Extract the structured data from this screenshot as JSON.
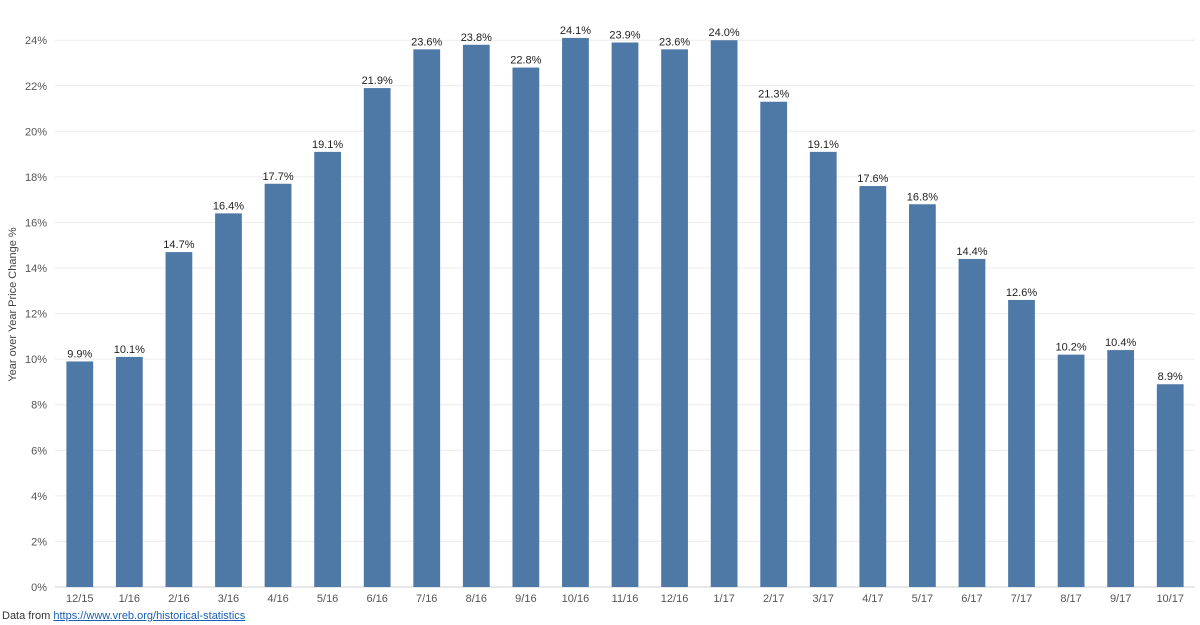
{
  "chart_data": {
    "type": "bar",
    "title": "",
    "xlabel": "",
    "ylabel": "Year over Year Price Change %",
    "ylim": [
      0,
      24.8
    ],
    "yticks": [
      "0%",
      "2%",
      "4%",
      "6%",
      "8%",
      "10%",
      "12%",
      "14%",
      "16%",
      "18%",
      "20%",
      "22%",
      "24%"
    ],
    "categories": [
      "12/15",
      "1/16",
      "2/16",
      "3/16",
      "4/16",
      "5/16",
      "6/16",
      "7/16",
      "8/16",
      "9/16",
      "10/16",
      "11/16",
      "12/16",
      "1/17",
      "2/17",
      "3/17",
      "4/17",
      "5/17",
      "6/17",
      "7/17",
      "8/17",
      "9/17",
      "10/17"
    ],
    "values": [
      9.9,
      10.1,
      14.7,
      16.4,
      17.7,
      19.1,
      21.9,
      23.6,
      23.8,
      22.8,
      24.1,
      23.9,
      23.6,
      24.0,
      21.3,
      19.1,
      17.6,
      16.8,
      14.4,
      12.6,
      10.2,
      10.4,
      8.9
    ],
    "data_labels": [
      "9.9%",
      "10.1%",
      "14.7%",
      "16.4%",
      "17.7%",
      "19.1%",
      "21.9%",
      "23.6%",
      "23.8%",
      "22.8%",
      "24.1%",
      "23.9%",
      "23.6%",
      "24.0%",
      "21.3%",
      "19.1%",
      "17.6%",
      "16.8%",
      "14.4%",
      "12.6%",
      "10.2%",
      "10.4%",
      "8.9%"
    ],
    "bar_color": "#4e79a7",
    "grid": true
  },
  "footer": {
    "prefix": "Data from ",
    "link_text": "https://www.vreb.org/historical-statistics"
  }
}
